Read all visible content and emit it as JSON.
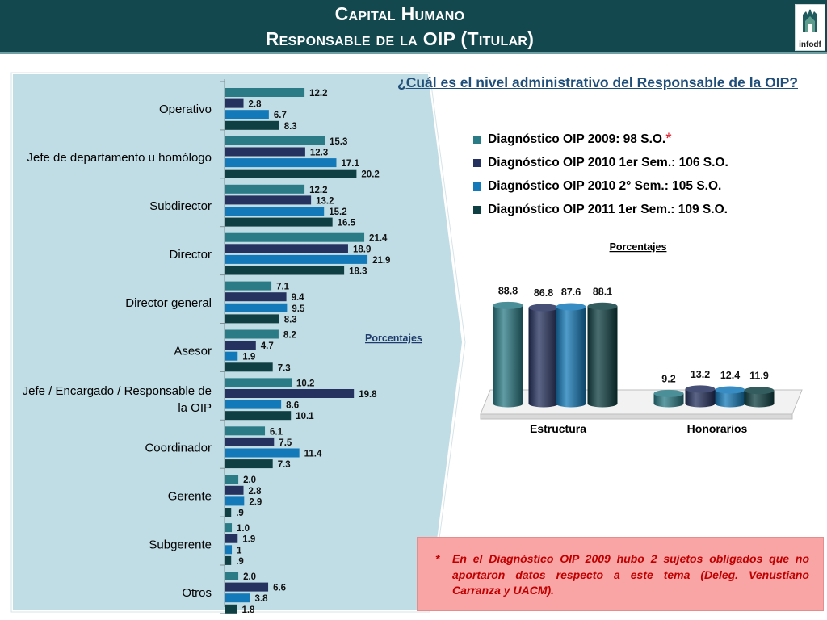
{
  "header": {
    "title_line1": "Capital Humano",
    "title_line2": "Responsable de la OIP (Titular)",
    "logo_text": "infodf"
  },
  "question": "¿Cuál es el nivel administrativo del Responsable de la OIP?",
  "legend": [
    {
      "label": "Diagnóstico OIP 2009: 98 S.O.",
      "color": "#2b7b86",
      "mark": "*"
    },
    {
      "label": "Diagnóstico OIP 2010 1er Sem.: 106 S.O.",
      "color": "#25315e",
      "mark": ""
    },
    {
      "label": "Diagnóstico OIP 2010 2° Sem.: 105 S.O.",
      "color": "#1479b8",
      "mark": ""
    },
    {
      "label": "Diagnóstico OIP 2011 1er Sem.: 109 S.O.",
      "color": "#0f3f42",
      "mark": ""
    }
  ],
  "note": {
    "star": "*",
    "text": "En el Diagnóstico OIP 2009 hubo 2 sujetos obligados que no aportaron datos respecto a este tema (Deleg. Venustiano Carranza y UACM)."
  },
  "colors": {
    "series": [
      "#2b7b86",
      "#25315e",
      "#1479b8",
      "#0f3f42"
    ],
    "header_bg": "#12484e",
    "panel_bg": "#c0dde5",
    "note_bg": "#f9a5a5",
    "note_text": "#c00000"
  },
  "chart_data": [
    {
      "type": "bar",
      "orientation": "horizontal",
      "unit_label": "Porcentajes",
      "categories": [
        [
          "Operativo"
        ],
        [
          "Jefe de departamento u homólogo"
        ],
        [
          "Subdirector"
        ],
        [
          "Director"
        ],
        [
          "Director general"
        ],
        [
          "Asesor"
        ],
        [
          "Jefe / Encargado / Responsable de",
          "la OIP"
        ],
        [
          "Coordinador"
        ],
        [
          "Gerente"
        ],
        [
          "Subgerente"
        ],
        [
          "Otros"
        ]
      ],
      "series": [
        {
          "name": "Diagnóstico OIP 2009: 98 S.O.",
          "values": [
            12.2,
            15.3,
            12.2,
            21.4,
            7.1,
            8.2,
            10.2,
            6.1,
            2.0,
            1.0,
            2.0
          ]
        },
        {
          "name": "Diagnóstico OIP 2010 1er Sem.: 106 S.O.",
          "values": [
            2.8,
            12.3,
            13.2,
            18.9,
            9.4,
            4.7,
            19.8,
            7.5,
            2.8,
            1.9,
            6.6
          ]
        },
        {
          "name": "Diagnóstico OIP 2010 2° Sem.: 105 S.O.",
          "values": [
            6.7,
            17.1,
            15.2,
            21.9,
            9.5,
            1.9,
            8.6,
            11.4,
            2.9,
            1.0,
            3.8
          ]
        },
        {
          "name": "Diagnóstico OIP 2011 1er Sem.: 109 S.O.",
          "values": [
            8.3,
            20.2,
            16.5,
            18.3,
            8.3,
            7.3,
            10.1,
            7.3,
            0.9,
            0.9,
            1.8
          ]
        }
      ],
      "value_labels": [
        [
          "12.2",
          "15.3",
          "12.2",
          "21.4",
          "7.1",
          "8.2",
          "10.2",
          "6.1",
          "2.0",
          "1.0",
          "2.0"
        ],
        [
          "2.8",
          "12.3",
          "13.2",
          "18.9",
          "9.4",
          "4.7",
          "19.8",
          "7.5",
          "2.8",
          "1.9",
          "6.6"
        ],
        [
          "6.7",
          "17.1",
          "15.2",
          "21.9",
          "9.5",
          "1.9",
          "8.6",
          "11.4",
          "2.9",
          "1",
          "3.8"
        ],
        [
          "8.3",
          "20.2",
          "16.5",
          "18.3",
          "8.3",
          "7.3",
          "10.1",
          "7.3",
          ".9",
          ".9",
          "1.8"
        ]
      ],
      "xlim": [
        0,
        25
      ],
      "grid": false
    },
    {
      "type": "bar",
      "style": "3d-cylinder",
      "title": "Porcentajes",
      "categories": [
        "Estructura",
        "Honorarios"
      ],
      "series": [
        {
          "name": "Diagnóstico OIP 2009: 98 S.O.",
          "values": [
            88.8,
            9.2
          ]
        },
        {
          "name": "Diagnóstico OIP 2010 1er Sem.: 106 S.O.",
          "values": [
            86.8,
            13.2
          ]
        },
        {
          "name": "Diagnóstico OIP 2010 2° Sem.: 105 S.O.",
          "values": [
            87.6,
            12.4
          ]
        },
        {
          "name": "Diagnóstico OIP 2011 1er Sem.: 109 S.O.",
          "values": [
            88.1,
            11.9
          ]
        }
      ],
      "ylim": [
        0,
        100
      ],
      "grid": false
    }
  ]
}
